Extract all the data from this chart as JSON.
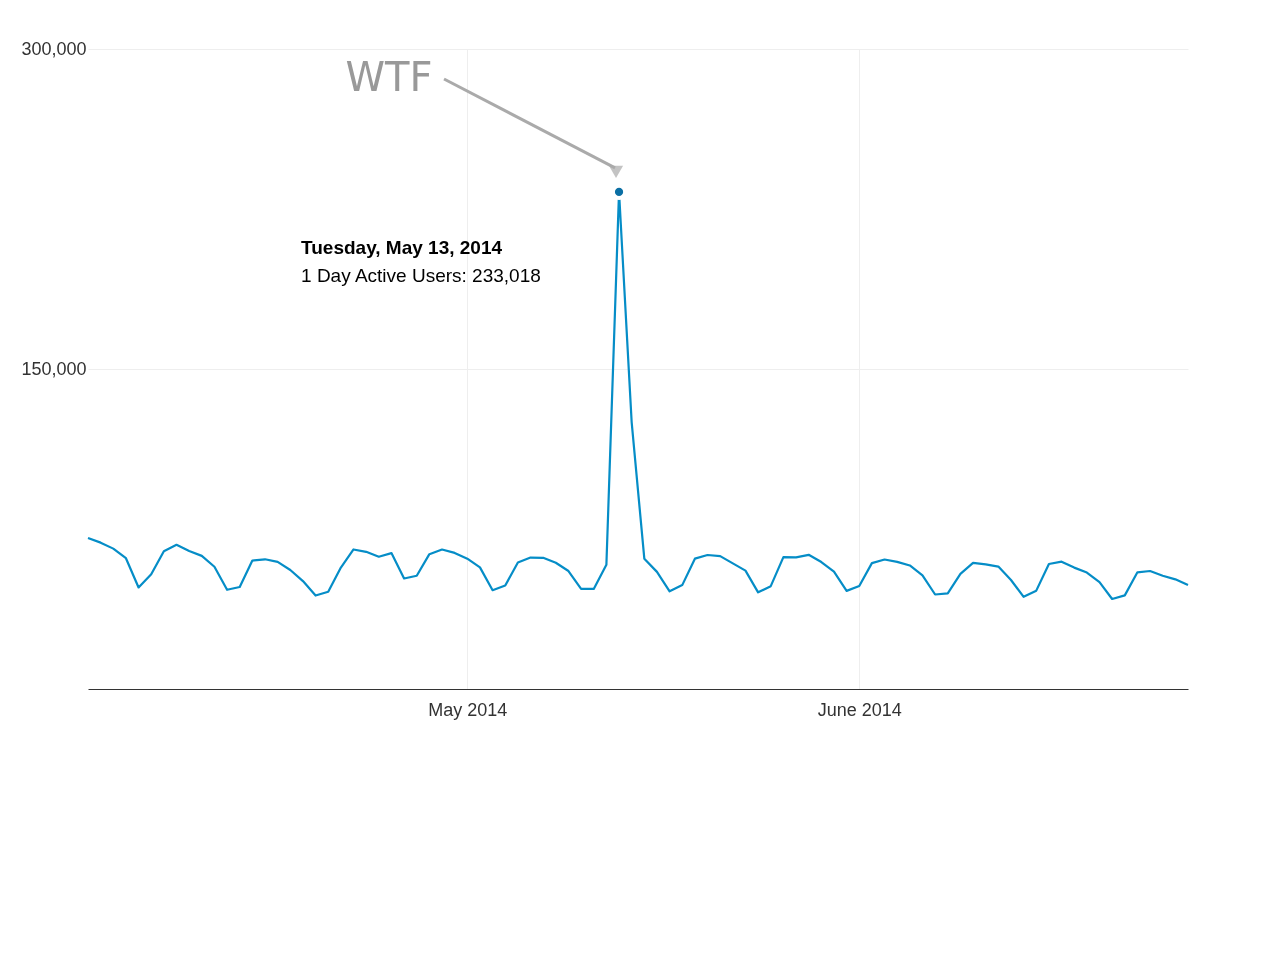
{
  "chart_data": {
    "type": "line",
    "x": [
      "2014-04-01",
      "2014-04-02",
      "2014-04-03",
      "2014-04-04",
      "2014-04-05",
      "2014-04-06",
      "2014-04-07",
      "2014-04-08",
      "2014-04-09",
      "2014-04-10",
      "2014-04-11",
      "2014-04-12",
      "2014-04-13",
      "2014-04-14",
      "2014-04-15",
      "2014-04-16",
      "2014-04-17",
      "2014-04-18",
      "2014-04-19",
      "2014-04-20",
      "2014-04-21",
      "2014-04-22",
      "2014-04-23",
      "2014-04-24",
      "2014-04-25",
      "2014-04-26",
      "2014-04-27",
      "2014-04-28",
      "2014-04-29",
      "2014-04-30",
      "2014-05-01",
      "2014-05-02",
      "2014-05-03",
      "2014-05-04",
      "2014-05-05",
      "2014-05-06",
      "2014-05-07",
      "2014-05-08",
      "2014-05-09",
      "2014-05-10",
      "2014-05-11",
      "2014-05-12",
      "2014-05-13",
      "2014-05-14",
      "2014-05-15",
      "2014-05-16",
      "2014-05-17",
      "2014-05-18",
      "2014-05-19",
      "2014-05-20",
      "2014-05-21",
      "2014-05-22",
      "2014-05-23",
      "2014-05-24",
      "2014-05-25",
      "2014-05-26",
      "2014-05-27",
      "2014-05-28",
      "2014-05-29",
      "2014-05-30",
      "2014-05-31",
      "2014-06-01",
      "2014-06-02",
      "2014-06-03",
      "2014-06-04",
      "2014-06-05",
      "2014-06-06",
      "2014-06-07",
      "2014-06-08",
      "2014-06-09",
      "2014-06-10",
      "2014-06-11",
      "2014-06-12",
      "2014-06-13",
      "2014-06-14",
      "2014-06-15",
      "2014-06-16",
      "2014-06-17",
      "2014-06-18",
      "2014-06-19",
      "2014-06-20",
      "2014-06-21",
      "2014-06-22",
      "2014-06-23",
      "2014-06-24",
      "2014-06-25",
      "2014-06-26",
      "2014-06-27"
    ],
    "series": [
      {
        "color": "#058dc7",
        "values": [
          70800,
          68600,
          65800,
          61300,
          47600,
          53800,
          64600,
          67600,
          64700,
          62400,
          57300,
          46500,
          47800,
          60200,
          60800,
          59600,
          55800,
          50600,
          43800,
          45600,
          56900,
          65400,
          64300,
          62000,
          63700,
          51800,
          53100,
          63200,
          65400,
          63800,
          61100,
          57000,
          46300,
          48500,
          59300,
          61600,
          61500,
          59200,
          55300,
          46900,
          46900,
          58200,
          233018,
          125000,
          61100,
          54900,
          45800,
          48700,
          61100,
          62800,
          62300,
          58900,
          55500,
          45300,
          48200,
          61800,
          61700,
          62900,
          59500,
          55000,
          46000,
          48300,
          59000,
          60700,
          59600,
          57900,
          53300,
          44300,
          44800,
          54000,
          59100,
          58400,
          57400,
          51100,
          43200,
          46100,
          58600,
          59700,
          56900,
          54600,
          50100,
          42200,
          43900,
          54700,
          55300,
          53100,
          51400,
          48800
        ]
      },
      {
        "type": "scatter",
        "marker": "circle",
        "color": "#0b6fa4",
        "x": [
          "2014-05-13"
        ],
        "values": [
          233018
        ]
      }
    ],
    "xlim": [
      "2014-04-01",
      "2014-06-27"
    ],
    "xticks": [
      {
        "value": "2014-05-01",
        "label": "May 2014"
      },
      {
        "value": "2014-06-01",
        "label": "June 2014"
      }
    ],
    "ylim": [
      0,
      300000
    ],
    "yticks": [
      {
        "value": 150000,
        "label": "150,000"
      },
      {
        "value": 300000,
        "label": "300,000"
      }
    ],
    "grid": true,
    "marker": "none",
    "annotations": [
      "WTF",
      "Tuesday, May 13, 2014",
      "1 Day Active Users: 233,018"
    ]
  }
}
